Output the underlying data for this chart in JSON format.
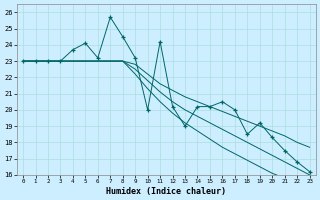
{
  "xlabel": "Humidex (Indice chaleur)",
  "bg_color": "#cceeff",
  "grid_color": "#aadddd",
  "line_color": "#006666",
  "xlim": [
    -0.5,
    23.5
  ],
  "ylim": [
    16,
    26.5
  ],
  "yticks": [
    16,
    17,
    18,
    19,
    20,
    21,
    22,
    23,
    24,
    25,
    26
  ],
  "xticks": [
    0,
    1,
    2,
    3,
    4,
    5,
    6,
    7,
    8,
    9,
    10,
    11,
    12,
    13,
    14,
    15,
    16,
    17,
    18,
    19,
    20,
    21,
    22,
    23
  ],
  "series": [
    {
      "x": [
        0,
        1,
        2,
        3,
        4,
        5,
        6,
        7,
        8,
        9,
        10,
        11,
        12,
        13,
        14,
        15,
        16,
        17,
        18,
        19,
        20,
        21,
        22,
        23
      ],
      "y": [
        23,
        23,
        23,
        23,
        23.7,
        24.1,
        23.2,
        25.7,
        24.5,
        23.2,
        20.0,
        24.2,
        20.2,
        19.0,
        20.2,
        20.2,
        20.5,
        20.0,
        18.5,
        19.2,
        18.3,
        17.5,
        16.8,
        16.2
      ],
      "marker": "+"
    },
    {
      "x": [
        0,
        1,
        2,
        3,
        4,
        5,
        6,
        7,
        8,
        9,
        10,
        11,
        12,
        13,
        14,
        15,
        16,
        17,
        18,
        19,
        20,
        21,
        22,
        23
      ],
      "y": [
        23,
        23,
        23,
        23,
        23,
        23,
        23,
        23,
        23,
        22.8,
        22.2,
        21.6,
        21.2,
        20.8,
        20.5,
        20.2,
        19.9,
        19.6,
        19.3,
        19.0,
        18.7,
        18.4,
        18.0,
        17.7
      ],
      "marker": null
    },
    {
      "x": [
        0,
        1,
        2,
        3,
        4,
        5,
        6,
        7,
        8,
        9,
        10,
        11,
        12,
        13,
        14,
        15,
        16,
        17,
        18,
        19,
        20,
        21,
        22,
        23
      ],
      "y": [
        23,
        23,
        23,
        23,
        23,
        23,
        23,
        23,
        23,
        22.5,
        21.8,
        21.1,
        20.5,
        20.0,
        19.6,
        19.2,
        18.8,
        18.4,
        18.0,
        17.6,
        17.2,
        16.8,
        16.4,
        16.0
      ],
      "marker": null
    },
    {
      "x": [
        0,
        1,
        2,
        3,
        4,
        5,
        6,
        7,
        8,
        9,
        10,
        11,
        12,
        13,
        14,
        15,
        16,
        17,
        18,
        19,
        20,
        21,
        22,
        23
      ],
      "y": [
        23,
        23,
        23,
        23,
        23,
        23,
        23,
        23,
        23,
        22.2,
        21.3,
        20.5,
        19.8,
        19.2,
        18.7,
        18.2,
        17.7,
        17.3,
        16.9,
        16.5,
        16.1,
        15.8,
        15.5,
        15.2
      ],
      "marker": null
    }
  ]
}
